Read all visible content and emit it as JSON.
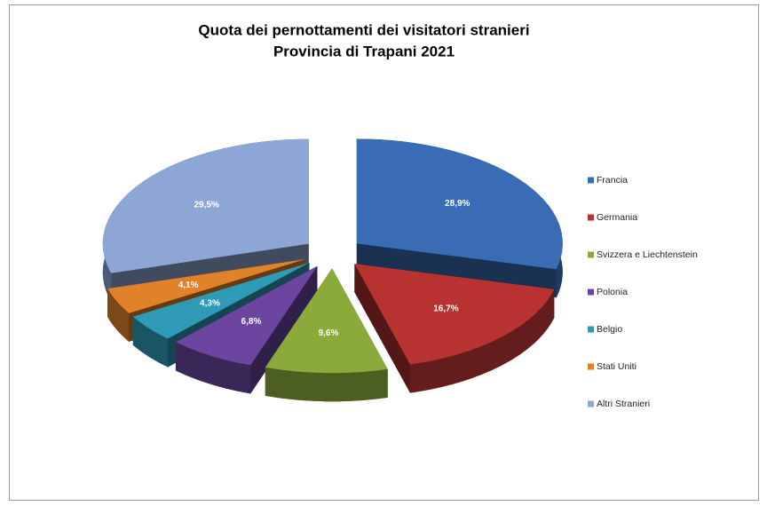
{
  "chart_data": {
    "type": "pie",
    "title": "Quota dei pernottamenti dei visitatori stranieri",
    "subtitle": "Provincia di Trapani 2021",
    "categories": [
      "Francia",
      "Germania",
      "Svizzera e Liechtenstein",
      "Polonia",
      "Belgio",
      "Stati Uniti",
      "Altri Stranieri"
    ],
    "values": [
      28.9,
      16.7,
      9.6,
      6.8,
      4.3,
      4.1,
      29.5
    ],
    "value_labels": [
      "28,9%",
      "16,7%",
      "9,6%",
      "6,8%",
      "4,3%",
      "4,1%",
      "29,5%"
    ],
    "colors": [
      "#3a6cb5",
      "#b83232",
      "#8aaa3a",
      "#6b45a0",
      "#2e9ab5",
      "#e0822a",
      "#8ea6d6"
    ],
    "legend": "right"
  }
}
